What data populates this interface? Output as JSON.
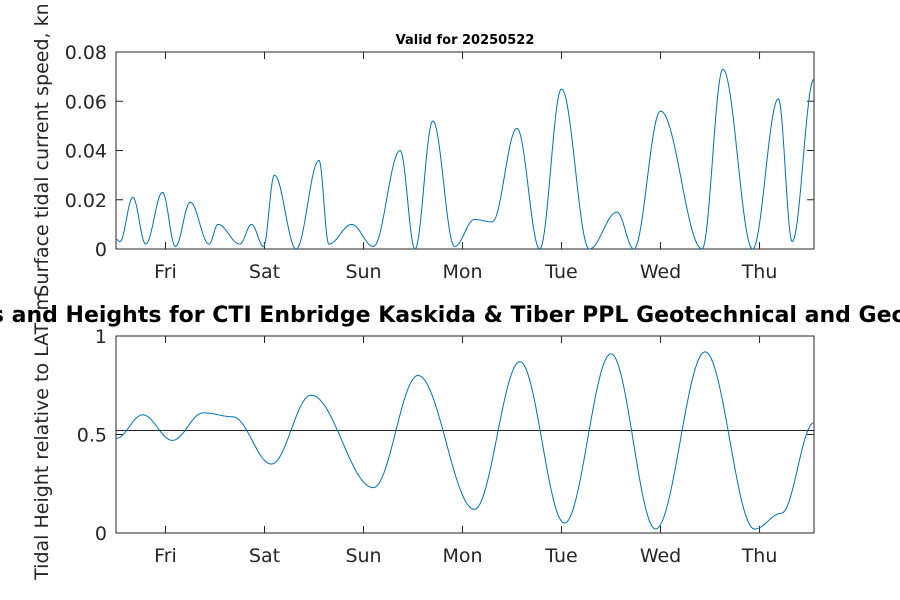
{
  "chart_data": [
    {
      "type": "line",
      "title": "Valid for 20250522",
      "ylabel": "Surface tidal current speed, kn",
      "xlabel": "",
      "x_ticks": [
        "Fri",
        "Sat",
        "Sun",
        "Mon",
        "Tue",
        "Wed",
        "Thu"
      ],
      "xlim": [
        0,
        7.05
      ],
      "ylim": [
        0,
        0.08
      ],
      "y_ticks": [
        "0",
        "0.02",
        "0.04",
        "0.06",
        "0.08"
      ],
      "grid": false,
      "line_color": "#0072bd",
      "series": [
        {
          "x": [
            0.0,
            0.04,
            0.17,
            0.3,
            0.47,
            0.6,
            0.75,
            0.94,
            1.03,
            1.25,
            1.37,
            1.49,
            1.6,
            1.82,
            2.05,
            2.15,
            2.38,
            2.6,
            2.87,
            3.02,
            3.2,
            3.42,
            3.62,
            3.8,
            4.05,
            4.28,
            4.5,
            4.78,
            5.06,
            5.23,
            5.5,
            5.92,
            6.13,
            6.43,
            6.69,
            6.83,
            7.05
          ],
          "y": [
            0.004,
            0.003,
            0.021,
            0.002,
            0.023,
            0.001,
            0.019,
            0.002,
            0.01,
            0.002,
            0.01,
            0.001,
            0.03,
            0.0,
            0.036,
            0.002,
            0.01,
            0.001,
            0.04,
            0.0,
            0.052,
            0.001,
            0.012,
            0.011,
            0.049,
            0.0,
            0.065,
            0.0,
            0.015,
            0.0,
            0.056,
            0.0,
            0.073,
            0.0,
            0.061,
            0.003,
            0.069
          ]
        }
      ]
    },
    {
      "type": "line",
      "title": "Tidal Currents and Heights for CTI Enbridge  Kaskida & Tiber PPL Geotechnical and Geophysical Survey",
      "ylabel": "Tidal Height relative to LAT, m",
      "xlabel": "",
      "x_ticks": [
        "Fri",
        "Sat",
        "Sun",
        "Mon",
        "Tue",
        "Wed",
        "Thu"
      ],
      "xlim": [
        0,
        7.05
      ],
      "ylim": [
        0,
        1
      ],
      "y_ticks": [
        "0",
        "0.5",
        "1"
      ],
      "grid": false,
      "line_color": "#0072bd",
      "reference_line": {
        "y": 0.52,
        "color": "#262626"
      },
      "series": [
        {
          "x": [
            0.0,
            0.27,
            0.57,
            0.88,
            1.18,
            1.57,
            1.97,
            2.6,
            3.05,
            3.62,
            4.08,
            4.53,
            5.0,
            5.45,
            5.95,
            6.45,
            6.72,
            7.05
          ],
          "y": [
            0.48,
            0.6,
            0.47,
            0.61,
            0.59,
            0.35,
            0.7,
            0.23,
            0.8,
            0.12,
            0.87,
            0.05,
            0.91,
            0.02,
            0.92,
            0.02,
            0.1,
            0.56
          ]
        }
      ]
    }
  ]
}
